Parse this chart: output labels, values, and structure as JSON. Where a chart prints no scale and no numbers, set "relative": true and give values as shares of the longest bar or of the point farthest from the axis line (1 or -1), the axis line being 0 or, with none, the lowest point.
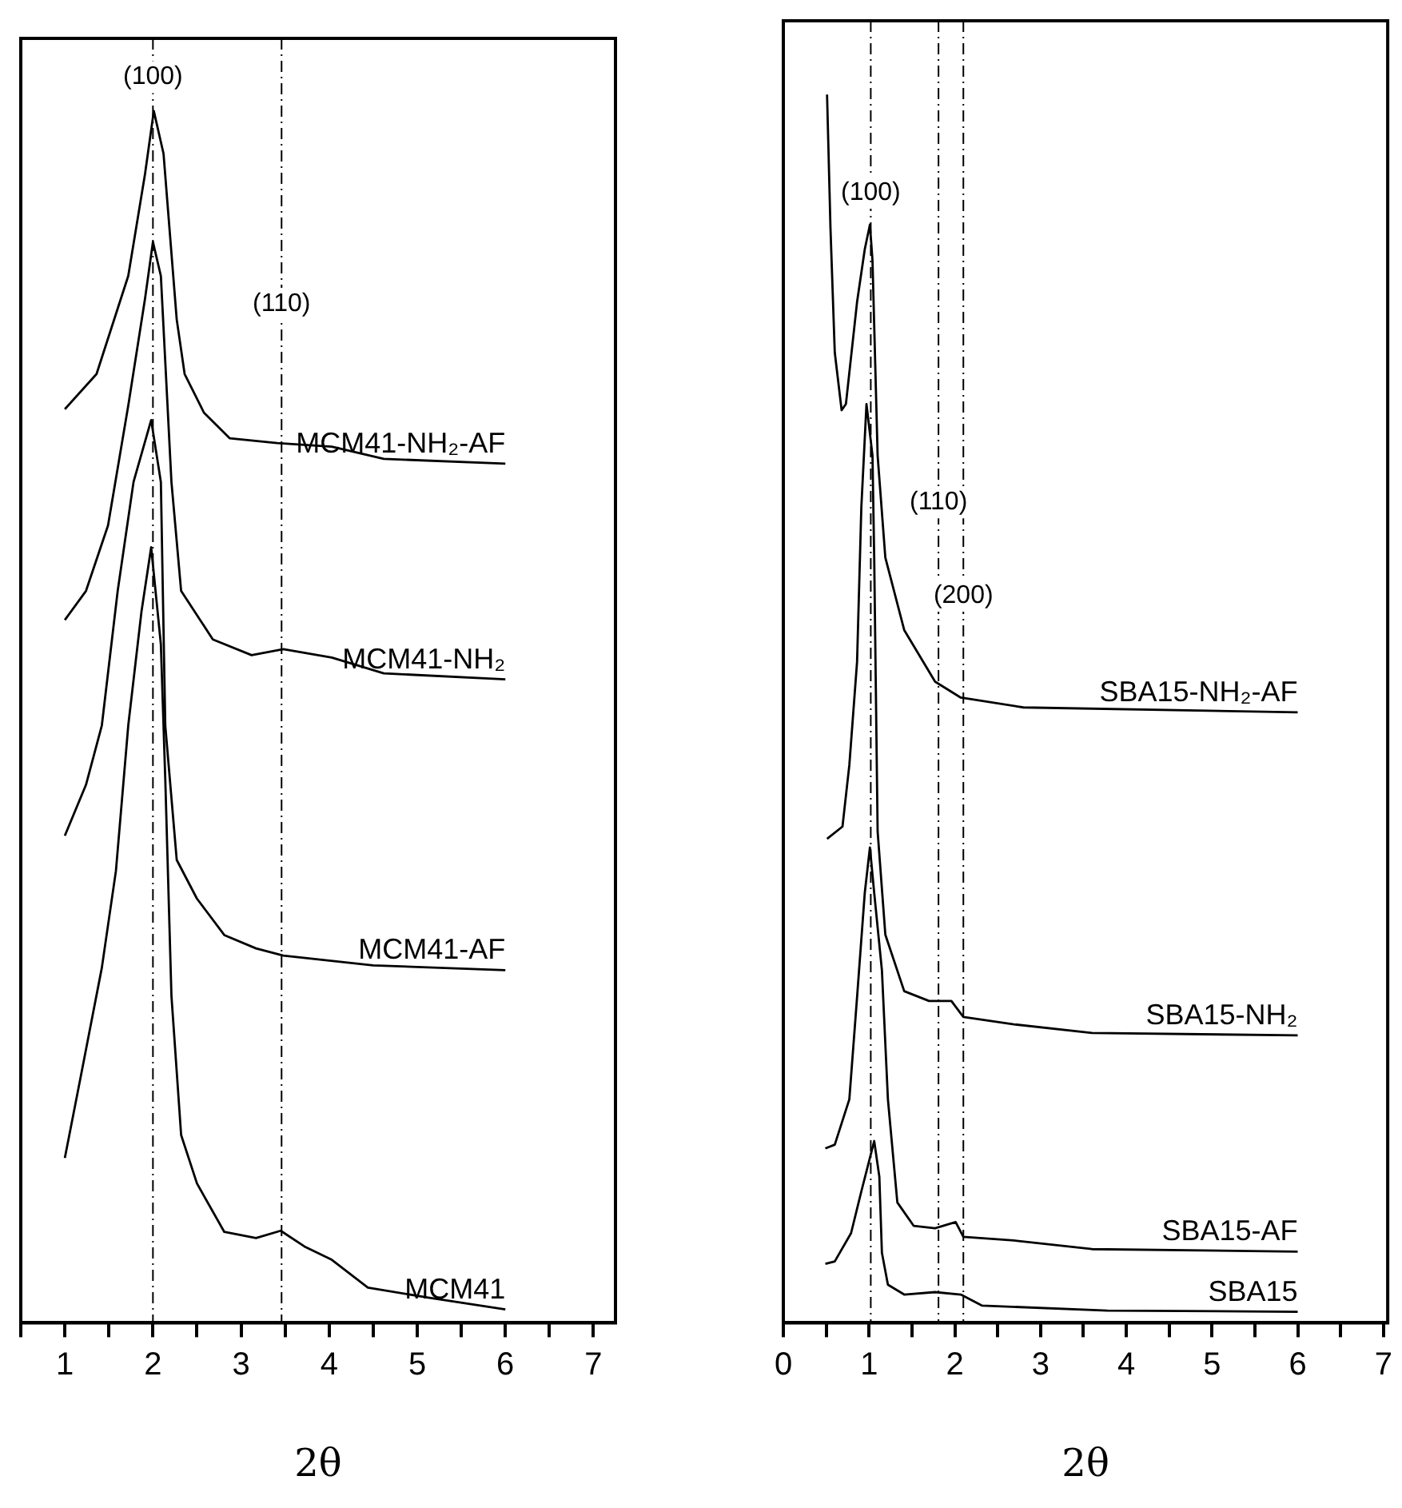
{
  "chart_data": [
    {
      "type": "line",
      "relative": true,
      "xlabel": "2θ",
      "xlim": [
        0.5,
        7.25
      ],
      "xticks": [
        {
          "value": 0.5,
          "label": null
        },
        1,
        {
          "value": 1.5,
          "label": null
        },
        2,
        {
          "value": 2.5,
          "label": null
        },
        3,
        {
          "value": 3.5,
          "label": null
        },
        4,
        {
          "value": 4.5,
          "label": null
        },
        5,
        {
          "value": 5.5,
          "label": null
        },
        6,
        {
          "value": 6.5,
          "label": null
        },
        7
      ],
      "series": [
        {
          "name": "MCM41-NH₂-AF",
          "color": "#000000",
          "x": [
            1.0,
            1.36,
            1.72,
            1.91,
            2.01,
            2.12,
            2.27,
            2.36,
            2.58,
            2.87,
            3.41,
            4.03,
            4.62,
            6.0
          ],
          "values": [
            0.754,
            0.783,
            0.864,
            0.948,
            1.0,
            0.965,
            0.828,
            0.783,
            0.751,
            0.73,
            0.726,
            0.723,
            0.713,
            0.709
          ]
        },
        {
          "name": "MCM41-NH₂",
          "color": "#000000",
          "x": [
            1.0,
            1.24,
            1.49,
            1.72,
            1.91,
            2.0,
            2.09,
            2.21,
            2.32,
            2.68,
            3.12,
            3.48,
            4.03,
            4.62,
            6.0
          ],
          "values": [
            0.58,
            0.604,
            0.658,
            0.757,
            0.845,
            0.892,
            0.864,
            0.694,
            0.604,
            0.564,
            0.551,
            0.556,
            0.549,
            0.536,
            0.531
          ]
        },
        {
          "name": "MCM41-AF",
          "color": "#000000",
          "x": [
            1.0,
            1.24,
            1.42,
            1.6,
            1.78,
            1.98,
            2.09,
            2.14,
            2.27,
            2.5,
            2.81,
            3.17,
            3.48,
            4.5,
            6.0
          ],
          "values": [
            0.402,
            0.444,
            0.493,
            0.604,
            0.694,
            0.745,
            0.694,
            0.493,
            0.382,
            0.35,
            0.32,
            0.309,
            0.303,
            0.295,
            0.291
          ]
        },
        {
          "name": "MCM41",
          "color": "#000000",
          "x": [
            1.0,
            1.18,
            1.42,
            1.58,
            1.72,
            1.87,
            1.98,
            2.09,
            2.14,
            2.21,
            2.32,
            2.5,
            2.81,
            3.17,
            3.45,
            3.72,
            4.03,
            4.44,
            5.11,
            6.0
          ],
          "values": [
            0.136,
            0.203,
            0.293,
            0.373,
            0.493,
            0.587,
            0.64,
            0.56,
            0.449,
            0.27,
            0.155,
            0.115,
            0.075,
            0.07,
            0.076,
            0.063,
            0.052,
            0.029,
            0.021,
            0.011
          ]
        }
      ],
      "ref_lines": [
        {
          "axis": "x",
          "value": 2.0,
          "line_style": "dashed"
        },
        {
          "axis": "x",
          "value": 3.46,
          "line_style": "dashed"
        }
      ],
      "annotations": [
        {
          "text": "(100)",
          "x": 2.0,
          "y": 1.028
        },
        {
          "text": "(110)",
          "x": 3.46,
          "y": 0.841
        }
      ]
    },
    {
      "type": "line",
      "relative": true,
      "xlabel": "2θ",
      "xlim": [
        0,
        7.05
      ],
      "xticks": [
        0,
        {
          "value": 0.5,
          "label": null
        },
        1,
        {
          "value": 1.5,
          "label": null
        },
        2,
        {
          "value": 2.5,
          "label": null
        },
        3,
        {
          "value": 3.5,
          "label": null
        },
        4,
        {
          "value": 4.5,
          "label": null
        },
        5,
        {
          "value": 5.5,
          "label": null
        },
        6,
        {
          "value": 6.5,
          "label": null
        },
        7
      ],
      "series": [
        {
          "name": "SBA15-NH₂-AF",
          "color": "#000000",
          "x": [
            0.51,
            0.55,
            0.6,
            0.68,
            0.73,
            0.86,
            0.95,
            1.01,
            1.04,
            1.1,
            1.19,
            1.41,
            1.77,
            2.07,
            2.8,
            6.0
          ],
          "values": [
            1.0,
            0.891,
            0.79,
            0.743,
            0.748,
            0.831,
            0.874,
            0.894,
            0.865,
            0.706,
            0.623,
            0.564,
            0.522,
            0.509,
            0.501,
            0.497
          ]
        },
        {
          "name": "SBA15-NH₂",
          "color": "#000000",
          "x": [
            0.51,
            0.69,
            0.77,
            0.86,
            0.91,
            0.97,
            1.04,
            1.06,
            1.1,
            1.19,
            1.41,
            1.7,
            1.96,
            2.1,
            2.69,
            3.6,
            6.0
          ],
          "values": [
            0.394,
            0.404,
            0.454,
            0.538,
            0.664,
            0.748,
            0.706,
            0.623,
            0.4,
            0.316,
            0.27,
            0.262,
            0.262,
            0.249,
            0.243,
            0.236,
            0.234
          ]
        },
        {
          "name": "SBA15-AF",
          "color": "#000000",
          "x": [
            0.49,
            0.6,
            0.77,
            0.86,
            0.95,
            1.01,
            1.06,
            1.15,
            1.22,
            1.33,
            1.52,
            1.77,
            2.01,
            2.1,
            2.69,
            3.6,
            6.0
          ],
          "values": [
            0.142,
            0.145,
            0.182,
            0.265,
            0.35,
            0.387,
            0.35,
            0.287,
            0.182,
            0.098,
            0.079,
            0.077,
            0.082,
            0.07,
            0.067,
            0.06,
            0.058
          ]
        },
        {
          "name": "SBA15",
          "color": "#000000",
          "x": [
            0.49,
            0.6,
            0.79,
            0.91,
            1.06,
            1.12,
            1.15,
            1.22,
            1.41,
            1.77,
            2.07,
            2.32,
            3.78,
            6.0
          ],
          "values": [
            0.048,
            0.05,
            0.073,
            0.107,
            0.148,
            0.119,
            0.057,
            0.031,
            0.023,
            0.025,
            0.023,
            0.014,
            0.01,
            0.009
          ]
        }
      ],
      "ref_lines": [
        {
          "axis": "x",
          "value": 1.02,
          "line_style": "dashed"
        },
        {
          "axis": "x",
          "value": 1.81,
          "line_style": "dashed"
        },
        {
          "axis": "x",
          "value": 2.1,
          "line_style": "dashed"
        }
      ],
      "annotations": [
        {
          "text": "(100)",
          "x": 1.02,
          "y": 0.92
        },
        {
          "text": "(110)",
          "x": 1.81,
          "y": 0.668
        },
        {
          "text": "(200)",
          "x": 2.1,
          "y": 0.592
        }
      ]
    }
  ]
}
